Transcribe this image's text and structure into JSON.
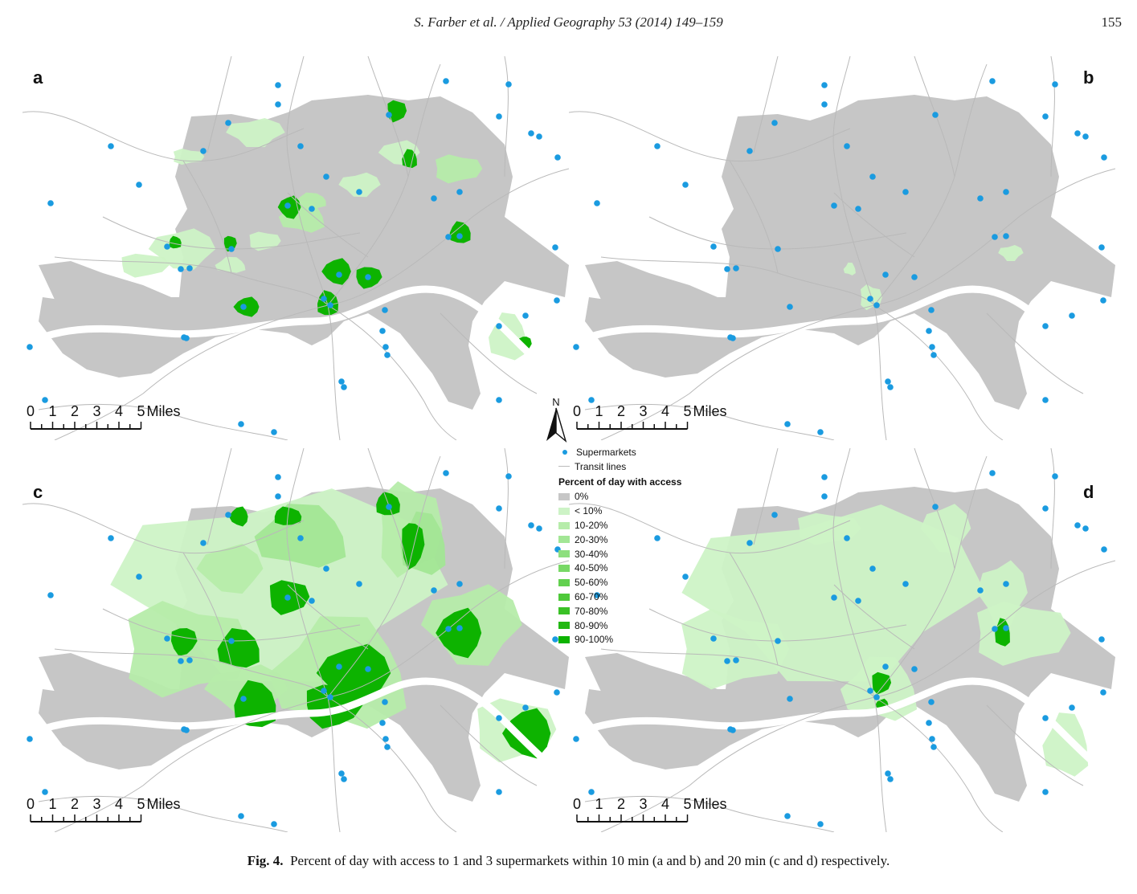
{
  "running_head": "S. Farber et al. / Applied Geography 53 (2014) 149–159",
  "page_number": "155",
  "panels": [
    {
      "letter": "a",
      "variant": "a"
    },
    {
      "letter": "b",
      "variant": "b"
    },
    {
      "letter": "c",
      "variant": "c"
    },
    {
      "letter": "d",
      "variant": "d"
    }
  ],
  "scale_bar": {
    "ticks": [
      "0",
      "1",
      "2",
      "3",
      "4",
      "5"
    ],
    "unit": "Miles"
  },
  "north_arrow": {
    "label": "N"
  },
  "legend": {
    "supermarkets": "Supermarkets",
    "transit_lines": "Transit lines",
    "title": "Percent of day with access",
    "classes": [
      {
        "label": "0%",
        "color": "#c6c6c6"
      },
      {
        "label": "< 10%",
        "color": "#cdf3c6"
      },
      {
        "label": "10-20%",
        "color": "#b6ecaa"
      },
      {
        "label": "20-30%",
        "color": "#a2e695"
      },
      {
        "label": "30-40%",
        "color": "#8ddf7e"
      },
      {
        "label": "40-50%",
        "color": "#78d866"
      },
      {
        "label": "50-60%",
        "color": "#62d14f"
      },
      {
        "label": "60-70%",
        "color": "#4ec93a"
      },
      {
        "label": "70-80%",
        "color": "#3ac126"
      },
      {
        "label": "80-90%",
        "color": "#22b812"
      },
      {
        "label": "90-100%",
        "color": "#0db300"
      }
    ]
  },
  "caption": {
    "label": "Fig. 4.",
    "text": "Percent of day with access to 1 and 3 supermarkets within 10 min (a and b) and 20 min (c and d) respectively."
  },
  "colors": {
    "supermarket": "#1a9be0",
    "transit": "#b9b9b9",
    "zero_access": "#c6c6c6"
  }
}
